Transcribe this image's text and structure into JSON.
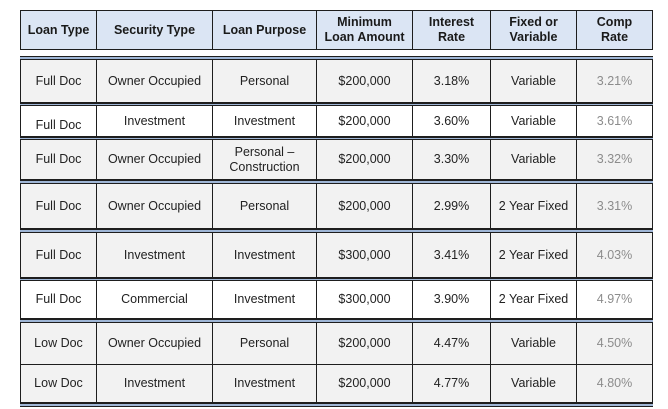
{
  "headers": {
    "loan_type": "Loan Type",
    "security_type": "Security Type",
    "loan_purpose": "Loan Purpose",
    "minimum_loan_line1": "Minimum",
    "minimum_loan_line2": "Loan Amount",
    "interest_line1": "Interest",
    "interest_line2": "Rate",
    "fixed_line1": "Fixed or",
    "fixed_line2": "Variable",
    "comp_line1": "Comp",
    "comp_line2": "Rate"
  },
  "rows": [
    {
      "loan_type": "Full Doc",
      "security_type": "Owner Occupied",
      "purpose": "Personal",
      "purpose_line2": "",
      "min_amount": "$200,000",
      "interest": "3.18%",
      "fixed_variable": "Variable",
      "comp": "3.21%"
    },
    {
      "loan_type": "Full Doc",
      "security_type": "Investment",
      "purpose": "Investment",
      "purpose_line2": "",
      "min_amount": "$200,000",
      "interest": "3.60%",
      "fixed_variable": "Variable",
      "comp": "3.61%"
    },
    {
      "loan_type": "Full Doc",
      "security_type": "Owner Occupied",
      "purpose": "Personal –",
      "purpose_line2": "Construction",
      "min_amount": "$200,000",
      "interest": "3.30%",
      "fixed_variable": "Variable",
      "comp": "3.32%"
    },
    {
      "loan_type": "Full Doc",
      "security_type": "Owner Occupied",
      "purpose": "Personal",
      "purpose_line2": "",
      "min_amount": "$200,000",
      "interest": "2.99%",
      "fixed_variable": "2 Year Fixed",
      "comp": "3.31%"
    },
    {
      "loan_type": "Full Doc",
      "security_type": "Investment",
      "purpose": "Investment",
      "purpose_line2": "",
      "min_amount": "$300,000",
      "interest": "3.41%",
      "fixed_variable": "2 Year Fixed",
      "comp": "4.03%"
    },
    {
      "loan_type": "Full Doc",
      "security_type": "Commercial",
      "purpose": "Investment",
      "purpose_line2": "",
      "min_amount": "$300,000",
      "interest": "3.90%",
      "fixed_variable": "2 Year Fixed",
      "comp": "4.97%"
    },
    {
      "loan_type": "Low Doc",
      "security_type": "Owner Occupied",
      "purpose": "Personal",
      "purpose_line2": "",
      "min_amount": "$200,000",
      "interest": "4.47%",
      "fixed_variable": "Variable",
      "comp": "4.50%"
    },
    {
      "loan_type": "Low Doc",
      "security_type": "Investment",
      "purpose": "Investment",
      "purpose_line2": "",
      "min_amount": "$200,000",
      "interest": "4.77%",
      "fixed_variable": "Variable",
      "comp": "4.80%"
    }
  ]
}
